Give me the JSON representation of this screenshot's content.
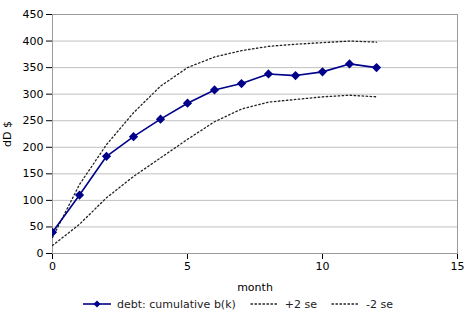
{
  "chart_data": {
    "type": "line",
    "xlabel": "month",
    "ylabel": "dD $",
    "x": [
      0,
      1,
      2,
      3,
      4,
      5,
      6,
      7,
      8,
      9,
      10,
      11,
      12
    ],
    "series": [
      {
        "name": "debt: cumulative b(k)",
        "color": "#00008B",
        "marker": "diamond",
        "line_style": "solid",
        "values": [
          40,
          110,
          183,
          220,
          253,
          283,
          308,
          320,
          338,
          335,
          342,
          357,
          350
        ]
      },
      {
        "name": "+2 se",
        "color": "#222222",
        "line_style": "dotted",
        "values": [
          30,
          130,
          205,
          265,
          315,
          350,
          370,
          382,
          390,
          394,
          397,
          400,
          398
        ]
      },
      {
        "name": "-2 se",
        "color": "#222222",
        "line_style": "dotted",
        "values": [
          15,
          55,
          105,
          145,
          180,
          215,
          248,
          272,
          285,
          290,
          295,
          298,
          295
        ]
      }
    ],
    "xlim": [
      0,
      15
    ],
    "ylim": [
      0,
      450
    ],
    "xticks": [
      0,
      5,
      10,
      15
    ],
    "yticks": [
      0,
      50,
      100,
      150,
      200,
      250,
      300,
      350,
      400,
      450
    ],
    "grid": true,
    "legend": "bottom"
  }
}
